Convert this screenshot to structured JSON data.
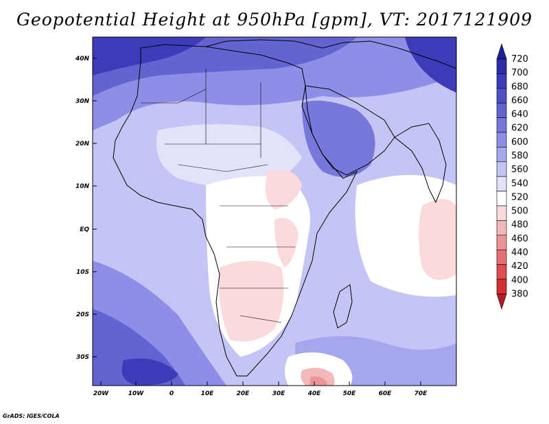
{
  "title": "Geopotential Height at 950hPa [gpm], VT: 2017121909",
  "credit": "GrADS: IGES/COLA",
  "lat_labels": [
    "40N",
    "30N",
    "20N",
    "10N",
    "EQ",
    "10S",
    "20S",
    "30S"
  ],
  "lon_labels": [
    "20W",
    "10W",
    "0",
    "10E",
    "20E",
    "30E",
    "40E",
    "50E",
    "60E",
    "70E"
  ],
  "colorbar": {
    "levels": [
      720,
      700,
      680,
      660,
      640,
      620,
      600,
      580,
      560,
      540,
      520,
      500,
      480,
      460,
      440,
      420,
      400,
      380
    ],
    "colors": [
      "#1e1e96",
      "#2d2da8",
      "#3c3cb8",
      "#4f4fc6",
      "#6363d2",
      "#7878dc",
      "#8e8ee6",
      "#a6a6ee",
      "#c4c4f5",
      "#e2e2fb",
      "#ffffff",
      "#fadadc",
      "#f4b8ba",
      "#ee9498",
      "#e67074",
      "#dc4e52",
      "#d03034",
      "#b81c20"
    ]
  },
  "chart_data": {
    "type": "heatmap",
    "title": "Geopotential Height at 950hPa [gpm], VT: 2017121909",
    "variable": "Geopotential Height",
    "level": "950hPa",
    "units": "gpm",
    "valid_time": "2017121909",
    "lon_range": [
      -22,
      80
    ],
    "lat_range": [
      -37,
      45
    ],
    "colorbar_range": [
      380,
      720
    ],
    "colorbar_interval": 20
  }
}
